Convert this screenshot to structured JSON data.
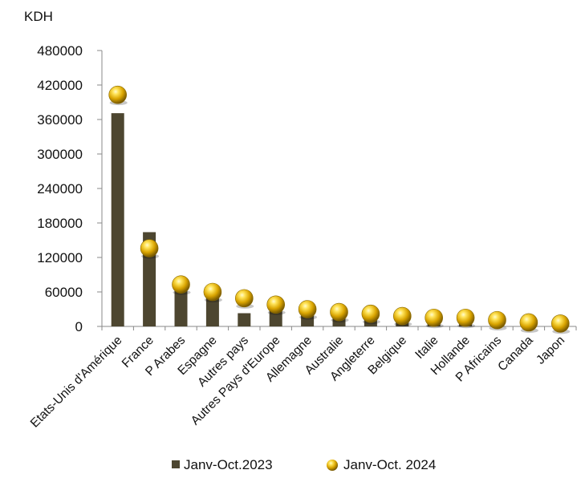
{
  "chart_data": {
    "type": "bar",
    "unit_label": "KDH",
    "categories": [
      "Etats-Unis d'Amérique",
      "France",
      "P Arabes",
      "Espagne",
      "Autres pays",
      "Autres Pays d'Europe",
      "Allemagne",
      "Australie",
      "Angleterre",
      "Belgique",
      "Italie",
      "Hollande",
      "P Africains",
      "Canada",
      "Japon"
    ],
    "series": [
      {
        "name": "Janv-Oct.2023",
        "mark": "bar",
        "color": "#4d4630",
        "values": [
          371000,
          164000,
          66000,
          52000,
          23000,
          30000,
          22000,
          18000,
          16000,
          13000,
          12000,
          11000,
          7000,
          5000,
          4000
        ]
      },
      {
        "name": "Janv-Oct. 2024",
        "mark": "sphere",
        "color": "#e0b000",
        "values": [
          403000,
          136000,
          73000,
          60000,
          49000,
          38000,
          30000,
          25000,
          22000,
          18000,
          15000,
          15000,
          11000,
          7000,
          5000
        ]
      }
    ],
    "y_ticks": [
      "0",
      "60000",
      "120000",
      "180000",
      "240000",
      "300000",
      "360000",
      "420000",
      "480000"
    ],
    "ylim": [
      0,
      480000
    ],
    "grid": false,
    "legend_position": "bottom"
  }
}
